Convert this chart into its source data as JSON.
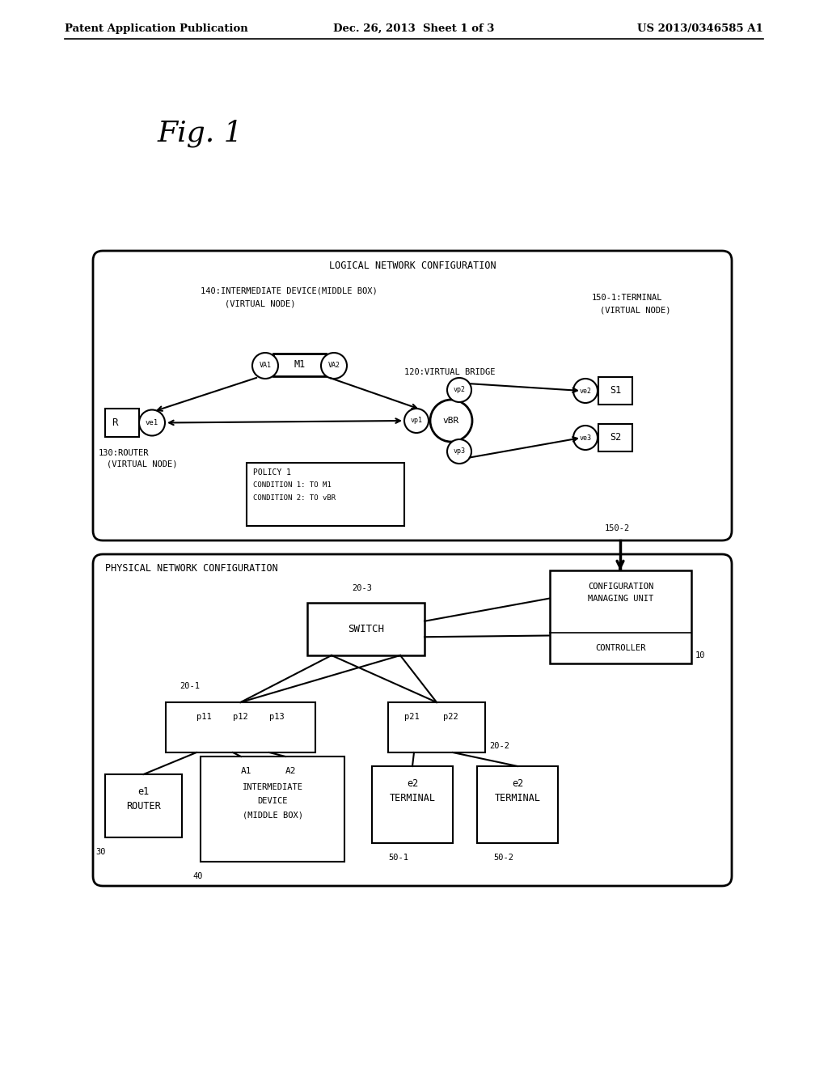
{
  "header_left": "Patent Application Publication",
  "header_mid": "Dec. 26, 2013  Sheet 1 of 3",
  "header_right": "US 2013/0346585 A1",
  "fig_label": "Fig. 1",
  "bg_color": "#ffffff",
  "logical_title": "LOGICAL NETWORK CONFIGURATION",
  "physical_title": "PHYSICAL NETWORK CONFIGURATION",
  "label_140": "140:INTERMEDIATE DEVICE(MIDDLE BOX)",
  "label_140b": "(VIRTUAL NODE)",
  "label_150_1": "150-1:TERMINAL",
  "label_150_1b": "(VIRTUAL NODE)",
  "label_120": "120:VIRTUAL BRIDGE",
  "label_130": "130:ROUTER",
  "label_130b": "(VIRTUAL NODE)",
  "label_150_2": "150-2",
  "label_10": "10",
  "label_20_1": "20-1",
  "label_20_2": "20-2",
  "label_20_3": "20-3",
  "label_30": "30",
  "label_40": "40",
  "label_50_1": "50-1",
  "label_50_2": "50-2"
}
